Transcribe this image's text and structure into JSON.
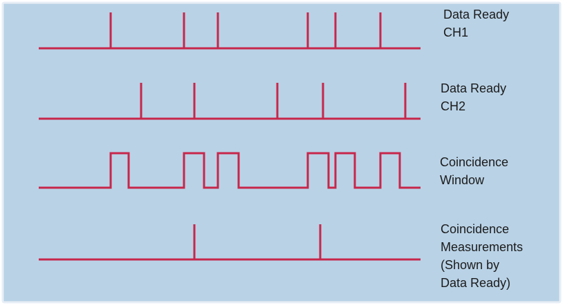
{
  "colors": {
    "background": "#b9d2e6",
    "border": "#e7eef5",
    "trace": "#c8264b",
    "text": "#1b1b1b"
  },
  "traces": [
    {
      "id": "data-ready-ch1",
      "label_lines": [
        "Data Ready",
        "CH1"
      ],
      "kind": "impulse"
    },
    {
      "id": "data-ready-ch2",
      "label_lines": [
        "Data Ready",
        "CH2"
      ],
      "kind": "impulse"
    },
    {
      "id": "coincidence-window",
      "label_lines": [
        "Coincidence",
        "Window"
      ],
      "kind": "pulse"
    },
    {
      "id": "coincidence-measurements",
      "label_lines": [
        "Coincidence",
        "Measurements",
        "(Shown by",
        "Data Ready)"
      ],
      "kind": "impulse"
    }
  ]
}
